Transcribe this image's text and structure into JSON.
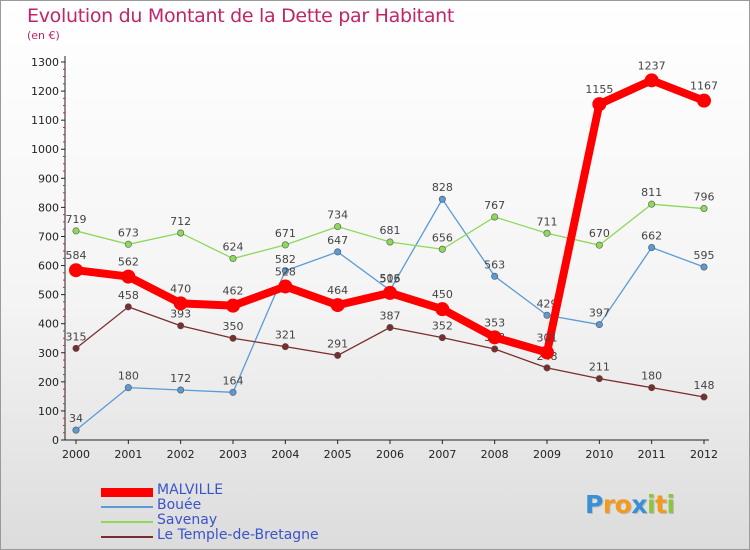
{
  "header": {
    "title": "Evolution du Montant de la Dette par Habitant",
    "subtitle": "(en €)"
  },
  "brand": {
    "letters": [
      "P",
      "r",
      "o",
      "x",
      "i",
      "t",
      "i"
    ],
    "colors": [
      "#3b8fd6",
      "#f29a1e",
      "#f29a1e",
      "#3b8fd6",
      "#8cc63f",
      "#f29a1e",
      "#8cc63f"
    ]
  },
  "chart_data": {
    "type": "line",
    "title": "Evolution du Montant de la Dette par Habitant",
    "subtitle": "(en €)",
    "xlabel": "",
    "ylabel": "",
    "ylim": [
      0,
      1300
    ],
    "yticks": [
      0,
      100,
      200,
      300,
      400,
      500,
      600,
      700,
      800,
      900,
      1000,
      1100,
      1200,
      1300
    ],
    "x": [
      "2000",
      "2001",
      "2002",
      "2003",
      "2004",
      "2005",
      "2006",
      "2007",
      "2008",
      "2009",
      "2010",
      "2011",
      "2012"
    ],
    "grid": false,
    "legend_position": "bottom-left",
    "series": [
      {
        "name": "MALVILLE",
        "color": "#ff0000",
        "values": [
          584,
          562,
          470,
          462,
          528,
          464,
          506,
          450,
          353,
          301,
          1155,
          1237,
          1167
        ]
      },
      {
        "name": "Bouée",
        "color": "#5b9bd5",
        "values": [
          34,
          180,
          172,
          164,
          582,
          647,
          515,
          828,
          563,
          429,
          397,
          662,
          595
        ]
      },
      {
        "name": "Savenay",
        "color": "#8ed85a",
        "values": [
          719,
          673,
          712,
          624,
          671,
          734,
          681,
          656,
          767,
          711,
          670,
          811,
          796
        ]
      },
      {
        "name": "Le Temple-de-Bretagne",
        "color": "#7b2c2c",
        "values": [
          315,
          458,
          393,
          350,
          321,
          291,
          387,
          352,
          313,
          248,
          211,
          180,
          148
        ]
      }
    ]
  }
}
